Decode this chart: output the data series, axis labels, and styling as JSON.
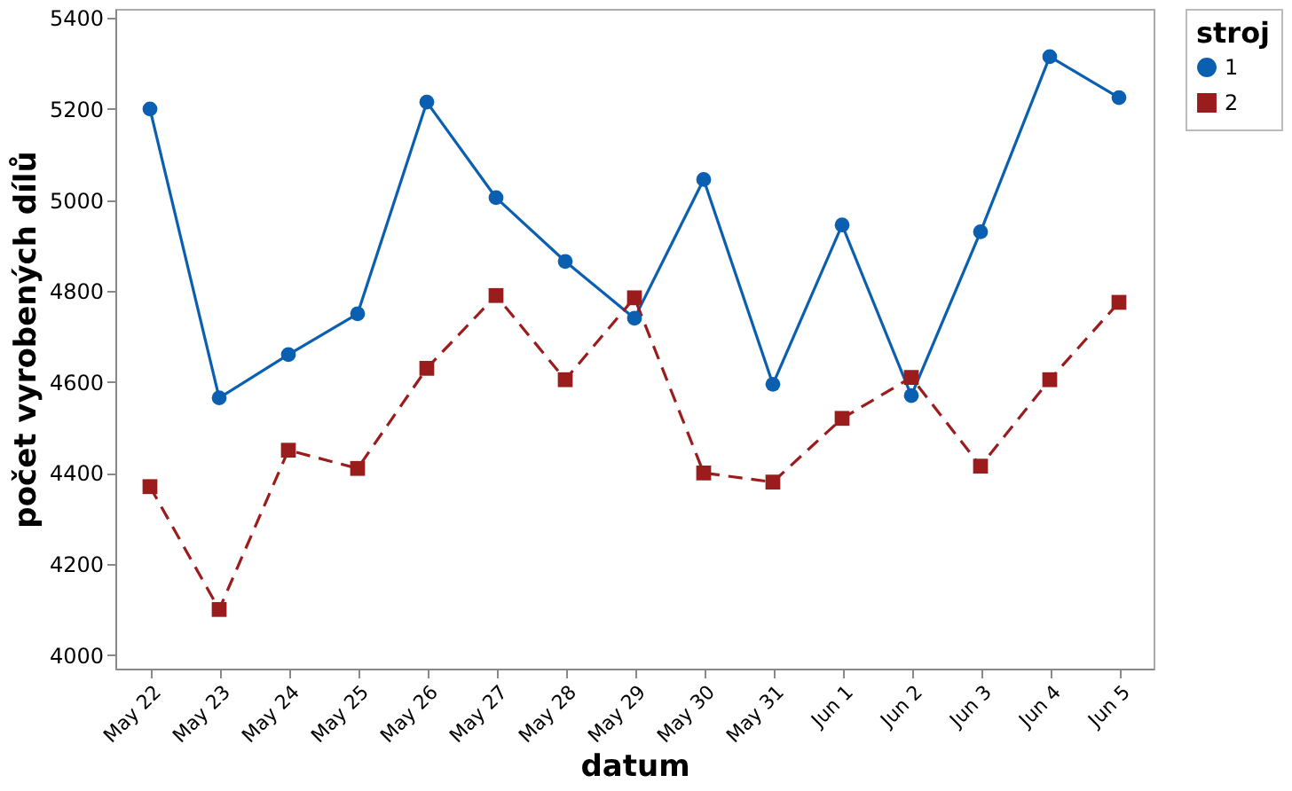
{
  "chart_data": {
    "type": "line",
    "xlabel": "datum",
    "ylabel": "počet vyrobených dílů",
    "legend_title": "stroj",
    "legend": "top right",
    "categories": [
      "May 22",
      "May 23",
      "May 24",
      "May 25",
      "May 26",
      "May 27",
      "May 28",
      "May 29",
      "May 30",
      "May 31",
      "Jun 1",
      "Jun 2",
      "Jun 3",
      "Jun 4",
      "Jun 5"
    ],
    "series": [
      {
        "name": "1",
        "color": "#0b5fb0",
        "marker": "circle",
        "line_style": "solid",
        "values": [
          5200,
          4565,
          4660,
          4750,
          5215,
          5005,
          4865,
          4740,
          5045,
          4595,
          4945,
          4570,
          4930,
          5315,
          5225
        ]
      },
      {
        "name": "2",
        "color": "#9b1c1c",
        "marker": "square",
        "line_style": "dashed",
        "values": [
          4370,
          4100,
          4450,
          4410,
          4630,
          4790,
          4605,
          4785,
          4400,
          4380,
          4520,
          4610,
          4415,
          4605,
          4775
        ]
      }
    ],
    "ylim": [
      3970,
      5420
    ],
    "yticks": [
      4000,
      4200,
      4400,
      4600,
      4800,
      5000,
      5200,
      5400
    ],
    "grid": false
  }
}
